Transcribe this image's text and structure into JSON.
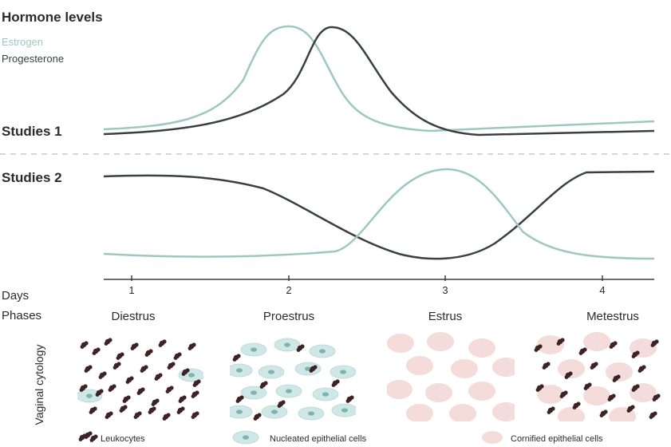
{
  "header": {
    "title": "Hormone levels",
    "legend": [
      {
        "label": "Estrogen",
        "color": "#9ec7c4"
      },
      {
        "label": "Progesterone",
        "color": "#3a3f40"
      }
    ]
  },
  "panels": [
    {
      "label": "Studies 1"
    },
    {
      "label": "Studies 2"
    }
  ],
  "axis": {
    "days_label": "Days",
    "ticks": [
      "1",
      "2",
      "3",
      "4"
    ]
  },
  "phases": {
    "label": "Phases",
    "names": [
      "Diestrus",
      "Proestrus",
      "Estrus",
      "Metestrus"
    ]
  },
  "cytology": {
    "label": "Vaginal cytology",
    "legend": [
      "Leukocytes",
      "Nucleated epithelial cells",
      "Cornified epithelial cells"
    ]
  },
  "colors": {
    "estrogen": "#9ec7c4",
    "progesterone": "#3a3f40",
    "leukocyte": "#3d2326",
    "nucleated_cell": "#cfe7e6",
    "nucleated_nucleus": "#7fb3b0",
    "cornified_cell": "#f3dcd9"
  }
}
